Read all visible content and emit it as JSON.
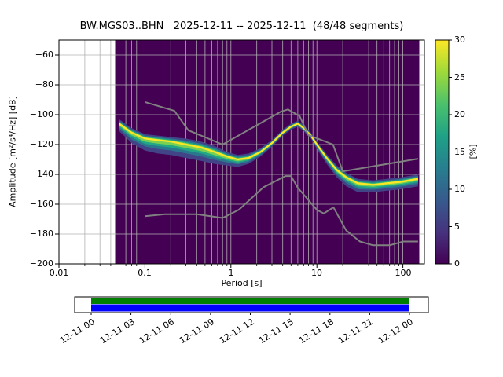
{
  "title": "BW.MGS03..BHN   2025-12-11 -- 2025-12-11  (48/48 segments)",
  "station": "BW.MGS03..BHN",
  "date_range": "2025-12-11 -- 2025-12-11",
  "segments": "48/48",
  "chart_data": {
    "type": "heatmap",
    "subtype": "ppsd-probability-density",
    "title": "BW.MGS03..BHN   2025-12-11 -- 2025-12-11  (48/48 segments)",
    "xlabel": "Period [s]",
    "ylabel": "Amplitude [m²/s⁴/Hz] [dB]",
    "colorbar_label": "[%]",
    "x_scale": "log",
    "xlim": [
      0.01,
      178
    ],
    "ylim": [
      -200,
      -50
    ],
    "x_ticks": [
      0.01,
      0.1,
      1,
      10,
      100
    ],
    "x_tick_labels": [
      "0.01",
      "0.1",
      "1",
      "10",
      "100"
    ],
    "y_ticks": [
      -60,
      -80,
      -100,
      -120,
      -140,
      -160,
      -180,
      -200
    ],
    "y_tick_labels": [
      "−60",
      "−80",
      "−100",
      "−120",
      "−140",
      "−160",
      "−180",
      "−200"
    ],
    "colorbar_range": [
      0,
      30
    ],
    "colorbar_ticks": [
      0,
      5,
      10,
      15,
      20,
      25,
      30
    ],
    "colorbar_tick_labels": [
      "0",
      "5",
      "10",
      "15",
      "20",
      "25",
      "30"
    ],
    "grid": true,
    "data_period_range": [
      0.045,
      155
    ],
    "psd_distribution": [
      [
        0.05,
        -106,
        3,
        5
      ],
      [
        0.07,
        -112,
        3,
        7
      ],
      [
        0.1,
        -116,
        3,
        8
      ],
      [
        0.14,
        -117,
        3,
        9
      ],
      [
        0.2,
        -118,
        3,
        9
      ],
      [
        0.3,
        -120,
        4,
        9
      ],
      [
        0.45,
        -122,
        4,
        9
      ],
      [
        0.65,
        -125,
        4,
        8
      ],
      [
        0.9,
        -128,
        3,
        6
      ],
      [
        1.2,
        -130,
        3,
        5
      ],
      [
        1.6,
        -129,
        3,
        4
      ],
      [
        2.2,
        -125,
        2.5,
        3
      ],
      [
        3.0,
        -119,
        2,
        2.5
      ],
      [
        4.0,
        -112,
        2,
        2
      ],
      [
        5.0,
        -108,
        2,
        2
      ],
      [
        6.0,
        -106,
        2,
        2
      ],
      [
        7.0,
        -109,
        2,
        2
      ],
      [
        8.5,
        -114,
        2,
        2
      ],
      [
        10.0,
        -120,
        2,
        3
      ],
      [
        13.0,
        -129,
        2.5,
        4
      ],
      [
        17.0,
        -137,
        3,
        5
      ],
      [
        22.0,
        -142,
        3,
        6
      ],
      [
        30.0,
        -146,
        3,
        6
      ],
      [
        45.0,
        -147,
        3,
        5
      ],
      [
        65.0,
        -146,
        3,
        5
      ],
      [
        95.0,
        -145,
        3,
        5
      ],
      [
        150.0,
        -143,
        3,
        5
      ]
    ],
    "nhnm": [
      [
        0.1,
        -91.5
      ],
      [
        0.22,
        -97.4
      ],
      [
        0.32,
        -110.5
      ],
      [
        0.8,
        -120.0
      ],
      [
        3.8,
        -98.0
      ],
      [
        4.6,
        -96.5
      ],
      [
        6.3,
        -101.0
      ],
      [
        7.9,
        -113.5
      ],
      [
        15.4,
        -120.0
      ],
      [
        20.0,
        -138.0
      ],
      [
        150.0,
        -129.5
      ]
    ],
    "nlnm": [
      [
        0.1,
        -168.0
      ],
      [
        0.17,
        -166.7
      ],
      [
        0.4,
        -166.7
      ],
      [
        0.8,
        -169.2
      ],
      [
        1.24,
        -163.7
      ],
      [
        2.4,
        -148.6
      ],
      [
        4.3,
        -141.1
      ],
      [
        5.0,
        -141.1
      ],
      [
        6.0,
        -149.0
      ],
      [
        10.0,
        -163.8
      ],
      [
        12.0,
        -166.2
      ],
      [
        15.6,
        -162.1
      ],
      [
        21.9,
        -177.5
      ],
      [
        31.6,
        -185.0
      ],
      [
        45.0,
        -187.5
      ],
      [
        70.0,
        -187.5
      ],
      [
        101.0,
        -185.0
      ],
      [
        150.0,
        -185.0
      ]
    ],
    "band_layers": [
      {
        "scale": 1.0,
        "color": "#414487"
      },
      {
        "scale": 0.66,
        "color": "#2a788e"
      },
      {
        "scale": 0.44,
        "color": "#22a884"
      },
      {
        "scale": 0.26,
        "color": "#7ad151"
      }
    ],
    "colors": {
      "histogram_background": "#440154",
      "mode_line": "#fde725",
      "noise_models": "#808080",
      "grid": "#b0b0b0",
      "frame": "#000000"
    },
    "viridis": [
      [
        0.0,
        "#440154"
      ],
      [
        0.14,
        "#46327e"
      ],
      [
        0.29,
        "#365c8d"
      ],
      [
        0.43,
        "#277f8e"
      ],
      [
        0.57,
        "#1fa187"
      ],
      [
        0.71,
        "#4ac16d"
      ],
      [
        0.86,
        "#a0da39"
      ],
      [
        1.0,
        "#fde725"
      ]
    ]
  },
  "coverage": {
    "labels": [
      "12-11 00",
      "12-11 03",
      "12-11 06",
      "12-11 09",
      "12-11 12",
      "12-11 15",
      "12-11 18",
      "12-11 21",
      "12-12 00"
    ],
    "top_color": "#008000",
    "bottom_color": "#0000ff"
  }
}
